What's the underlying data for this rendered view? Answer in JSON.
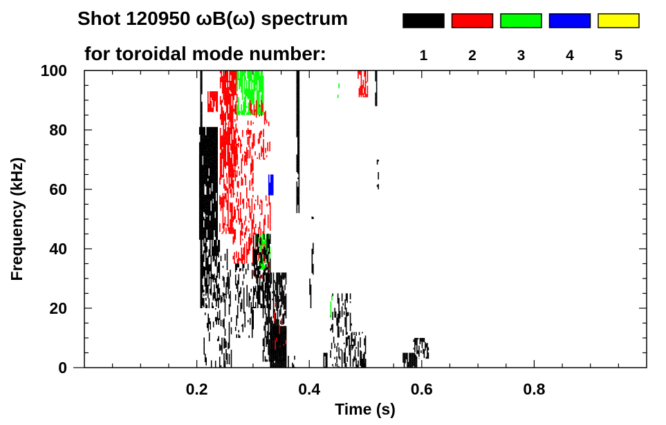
{
  "chart_data": {
    "type": "heatmap",
    "title": "Shot 120950 ωB(ω) spectrum",
    "subtitle": "for toroidal mode number:",
    "xlabel": "Time (s)",
    "ylabel": "Frequency (kHz)",
    "xlim": [
      0,
      1.0
    ],
    "ylim": [
      0,
      100
    ],
    "xticks": [
      0.2,
      0.4,
      0.6,
      0.8
    ],
    "xtick_labels": [
      "0.2",
      "0.4",
      "0.6",
      "0.8"
    ],
    "yticks": [
      0,
      20,
      40,
      60,
      80,
      100
    ],
    "ytick_labels": [
      "0",
      "20",
      "40",
      "60",
      "80",
      "100"
    ],
    "legend": [
      {
        "label": "1",
        "color": "#000000"
      },
      {
        "label": "2",
        "color": "#ff0000"
      },
      {
        "label": "3",
        "color": "#00ff00"
      },
      {
        "label": "4",
        "color": "#0000ff"
      },
      {
        "label": "5",
        "color": "#ffff00"
      }
    ],
    "legend_placement": "top-right",
    "patches_note_units": "t0,t1 in s; f0,f1 in kHz; mode number; density 0-1",
    "patches": [
      [
        0.204,
        0.237,
        43,
        81,
        1,
        0.92
      ],
      [
        0.206,
        0.24,
        20,
        43,
        1,
        0.55
      ],
      [
        0.206,
        0.209,
        20,
        100,
        1,
        0.9
      ],
      [
        0.212,
        0.24,
        0,
        20,
        1,
        0.15
      ],
      [
        0.241,
        0.272,
        64,
        100,
        2,
        0.8
      ],
      [
        0.219,
        0.236,
        86,
        93,
        2,
        0.7
      ],
      [
        0.24,
        0.265,
        45,
        64,
        2,
        0.45
      ],
      [
        0.242,
        0.262,
        0,
        40,
        1,
        0.3
      ],
      [
        0.262,
        0.3,
        35,
        80,
        2,
        0.3
      ],
      [
        0.271,
        0.318,
        85,
        100,
        3,
        0.7
      ],
      [
        0.29,
        0.33,
        70,
        90,
        2,
        0.25
      ],
      [
        0.3,
        0.33,
        30,
        58,
        2,
        0.3
      ],
      [
        0.305,
        0.33,
        33,
        45,
        3,
        0.5
      ],
      [
        0.327,
        0.335,
        58,
        65,
        4,
        0.9
      ],
      [
        0.268,
        0.3,
        10,
        35,
        1,
        0.3
      ],
      [
        0.3,
        0.33,
        20,
        45,
        1,
        0.5
      ],
      [
        0.317,
        0.358,
        2,
        32,
        1,
        0.6
      ],
      [
        0.33,
        0.358,
        0,
        14,
        1,
        0.9
      ],
      [
        0.335,
        0.36,
        5,
        25,
        2,
        0.12
      ],
      [
        0.377,
        0.381,
        52,
        100,
        1,
        0.95
      ],
      [
        0.404,
        0.407,
        50,
        54,
        1,
        0.95
      ],
      [
        0.404,
        0.406,
        30,
        42,
        1,
        0.6
      ],
      [
        0.4,
        0.403,
        20,
        30,
        1,
        0.6
      ],
      [
        0.486,
        0.503,
        91,
        100,
        2,
        0.55
      ],
      [
        0.517,
        0.52,
        88,
        100,
        1,
        0.9
      ],
      [
        0.425,
        0.432,
        0,
        5,
        1,
        0.9
      ],
      [
        0.437,
        0.475,
        0,
        25,
        1,
        0.35
      ],
      [
        0.475,
        0.5,
        0,
        12,
        1,
        0.45
      ],
      [
        0.49,
        0.5,
        0,
        3,
        1,
        0.8
      ],
      [
        0.566,
        0.59,
        0,
        5,
        1,
        0.85
      ],
      [
        0.585,
        0.612,
        3,
        10,
        1,
        0.5
      ],
      [
        0.36,
        0.375,
        0,
        4,
        1,
        0.3
      ],
      [
        0.43,
        0.44,
        15,
        25,
        3,
        0.08
      ],
      [
        0.52,
        0.522,
        60,
        70,
        1,
        0.5
      ],
      [
        0.45,
        0.455,
        88,
        100,
        3,
        0.1
      ]
    ]
  }
}
